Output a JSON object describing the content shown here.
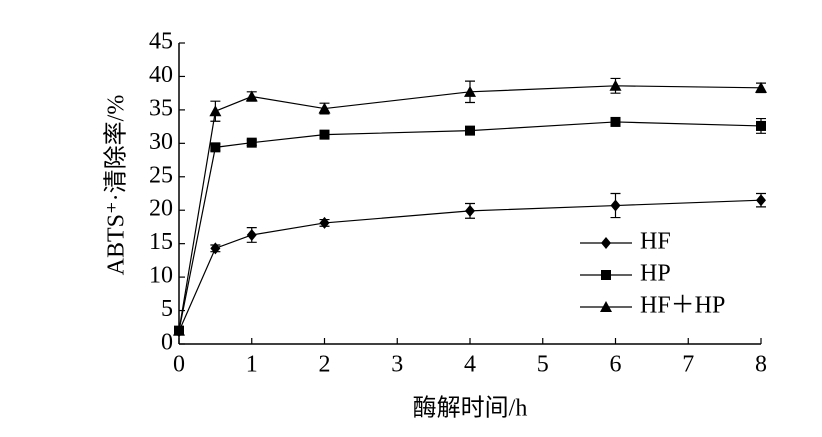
{
  "chart_data": {
    "type": "line",
    "x_label": "酶解时间/h",
    "y_label": "ABTS⁺·清除率/%",
    "x": [
      0,
      0.5,
      1,
      2,
      4,
      6,
      8
    ],
    "xlim": [
      0,
      8
    ],
    "xticks": [
      0,
      1,
      2,
      3,
      4,
      5,
      6,
      7,
      8
    ],
    "ylim": [
      0,
      45
    ],
    "yticks": [
      0,
      5,
      10,
      15,
      20,
      25,
      30,
      35,
      40,
      45
    ],
    "legend_position": "lower right",
    "series": [
      {
        "name": "HF",
        "color": "#000000",
        "marker": "diamond",
        "values": [
          1.9,
          14.3,
          16.3,
          18.1,
          19.9,
          20.7,
          21.5
        ],
        "errors": [
          0.5,
          0.5,
          1.1,
          0.5,
          1.1,
          1.8,
          1.0
        ]
      },
      {
        "name": "HP",
        "color": "#000000",
        "marker": "square",
        "values": [
          2.0,
          29.4,
          30.1,
          31.3,
          31.9,
          33.2,
          32.6
        ],
        "errors": [
          0.5,
          0.5,
          0.4,
          0.5,
          0.5,
          0.6,
          1.1
        ]
      },
      {
        "name": "HF＋HP",
        "color": "#000000",
        "marker": "triangle",
        "values": [
          2.0,
          34.8,
          37.0,
          35.2,
          37.7,
          38.6,
          38.3
        ],
        "errors": [
          0.5,
          1.5,
          0.7,
          0.8,
          1.6,
          1.1,
          0.7
        ]
      }
    ]
  }
}
